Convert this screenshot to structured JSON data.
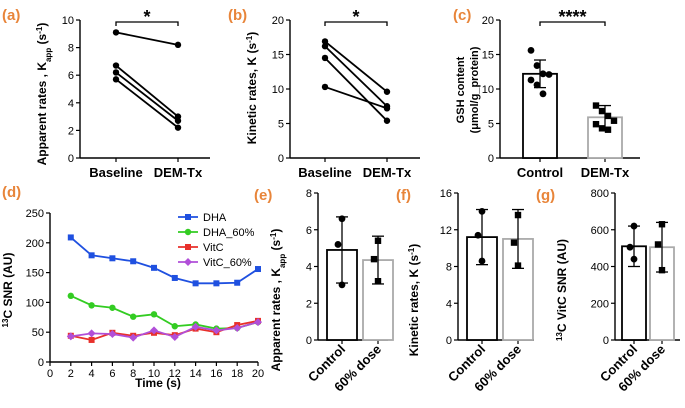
{
  "colors": {
    "panel_label": "#e8853a",
    "axis": "#000000",
    "bar_control": "#000000",
    "bar_treated": "#aaaaaa",
    "series": [
      "#1f50e0",
      "#33cc22",
      "#e8302b",
      "#b14fd8"
    ]
  },
  "chart_data": [
    {
      "id": "a",
      "type": "paired-line",
      "panel_label": "(a)",
      "title": "",
      "ylabel_main": "Apparent rates , K",
      "ylabel_sub": "app",
      "ylabel_unit": " (s",
      "ylabel_exp": "-1",
      "ylabel_close": ")",
      "categories": [
        "Baseline",
        "DEM-Tx"
      ],
      "pairs": [
        [
          9.1,
          8.2
        ],
        [
          6.7,
          3.0
        ],
        [
          6.2,
          2.7
        ],
        [
          5.7,
          2.2
        ]
      ],
      "ylim": [
        0,
        10
      ],
      "yticks": [
        0,
        2,
        4,
        6,
        8,
        10
      ],
      "significance": "*"
    },
    {
      "id": "b",
      "type": "paired-line",
      "panel_label": "(b)",
      "title": "",
      "ylabel_main": "Kinetic rates, K (s",
      "ylabel_exp": "-1",
      "ylabel_close": ")",
      "categories": [
        "Baseline",
        "DEM-Tx"
      ],
      "pairs": [
        [
          16.9,
          9.6
        ],
        [
          16.2,
          7.5
        ],
        [
          14.5,
          5.4
        ],
        [
          10.3,
          7.2
        ]
      ],
      "ylim": [
        0,
        20
      ],
      "yticks": [
        0,
        5,
        10,
        15,
        20
      ],
      "significance": "*"
    },
    {
      "id": "c",
      "type": "bar-scatter",
      "panel_label": "(c)",
      "title": "",
      "ylabel_line1": "GSH content",
      "ylabel_line2": "(μmol/g_protein)",
      "categories": [
        "Control",
        "DEM-Tx"
      ],
      "means": [
        12.2,
        5.9
      ],
      "sd": [
        2.0,
        1.7
      ],
      "points": [
        [
          15.6,
          13.4,
          12.2,
          12.1,
          11.3,
          10.6,
          9.3
        ],
        [
          7.6,
          6.8,
          6.1,
          5.4,
          4.9,
          4.3,
          4.1
        ]
      ],
      "ylim": [
        0,
        20
      ],
      "yticks": [
        0,
        5,
        10,
        15,
        20
      ],
      "significance": "****"
    },
    {
      "id": "d",
      "type": "line",
      "panel_label": "(d)",
      "title": "",
      "xlabel": "Time (s)",
      "ylabel_pre": "13",
      "ylabel_main": "C SNR (AU)",
      "x": [
        2,
        4,
        6,
        8,
        10,
        12,
        14,
        16,
        18,
        20
      ],
      "series": [
        {
          "name": "DHA",
          "values": [
            209,
            179,
            174,
            169,
            158,
            141,
            132,
            132,
            133,
            156
          ]
        },
        {
          "name": "DHA_60%",
          "values": [
            111,
            95,
            91,
            76,
            80,
            60,
            63,
            56,
            57,
            67
          ]
        },
        {
          "name": "VitC",
          "values": [
            44,
            37,
            49,
            44,
            49,
            45,
            56,
            50,
            62,
            69
          ]
        },
        {
          "name": "VitC_60%",
          "values": [
            43,
            48,
            47,
            41,
            53,
            42,
            59,
            53,
            57,
            67
          ]
        }
      ],
      "xlim": [
        0,
        20
      ],
      "ylim": [
        0,
        250
      ],
      "xticks": [
        0,
        2,
        4,
        6,
        8,
        10,
        12,
        14,
        16,
        18,
        20
      ],
      "yticks": [
        0,
        50,
        100,
        150,
        200,
        250
      ],
      "legend_position": "top-right"
    },
    {
      "id": "e",
      "type": "bar-scatter",
      "panel_label": "(e)",
      "title": "",
      "ylabel_main": "Apparent rates , K",
      "ylabel_sub": "app",
      "ylabel_unit": " (s",
      "ylabel_exp": "-1",
      "ylabel_close": ")",
      "categories": [
        "Control",
        "60% dose"
      ],
      "means": [
        4.9,
        4.35
      ],
      "sd": [
        1.8,
        1.3
      ],
      "points": [
        [
          6.6,
          5.2,
          3.0
        ],
        [
          5.4,
          4.4,
          3.2
        ]
      ],
      "ylim": [
        0,
        8
      ],
      "yticks": [
        0,
        2,
        4,
        6,
        8
      ]
    },
    {
      "id": "f",
      "type": "bar-scatter",
      "panel_label": "(f)",
      "title": "",
      "ylabel_main": "Kinetic rates, K (s",
      "ylabel_exp": "-1",
      "ylabel_close": ")",
      "categories": [
        "Control",
        "60% dose"
      ],
      "means": [
        11.2,
        11.0
      ],
      "sd": [
        3.0,
        3.2
      ],
      "points": [
        [
          14.0,
          11.4,
          8.6
        ],
        [
          13.6,
          10.6,
          8.1
        ]
      ],
      "ylim": [
        0,
        16
      ],
      "yticks": [
        0,
        4,
        8,
        12,
        16
      ]
    },
    {
      "id": "g",
      "type": "bar-scatter",
      "panel_label": "(g)",
      "title": "",
      "ylabel_pre": "13",
      "ylabel_main": "C VitC SNR (AU)",
      "categories": [
        "Control",
        "60% dose"
      ],
      "means": [
        510,
        505
      ],
      "sd": [
        110,
        135
      ],
      "points": [
        [
          620,
          505,
          440
        ],
        [
          630,
          520,
          380
        ]
      ],
      "ylim": [
        0,
        800
      ],
      "yticks": [
        0,
        200,
        400,
        600,
        800
      ]
    }
  ]
}
